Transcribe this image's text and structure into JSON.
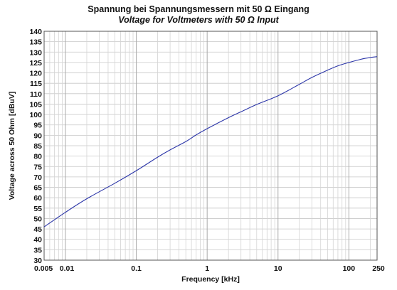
{
  "chart_data": {
    "type": "line",
    "title": "Spannung bei Spannungsmessern mit 50 Ω Eingang",
    "subtitle": "Voltage for Voltmeters with 50 Ω Input",
    "xlabel": "Frequency [kHz]",
    "ylabel": "Voltage across 50 Ohm [dBuV]",
    "x_scale": "log",
    "xlim": [
      0.005,
      250
    ],
    "ylim": [
      30,
      140
    ],
    "grid": true,
    "x_tick_labels": [
      "0.005",
      "0.01",
      "0.1",
      "1",
      "10",
      "100",
      "250"
    ],
    "x_ticks": [
      0.005,
      0.01,
      0.1,
      1,
      10,
      100,
      250
    ],
    "y_ticks": [
      30,
      35,
      40,
      45,
      50,
      55,
      60,
      65,
      70,
      75,
      80,
      85,
      90,
      95,
      100,
      105,
      110,
      115,
      120,
      125,
      130,
      135,
      140
    ],
    "series_color": "#2b35a8",
    "x": [
      0.005,
      0.01,
      0.02,
      0.05,
      0.1,
      0.2,
      0.3,
      0.5,
      0.7,
      1,
      2,
      3,
      5,
      10,
      20,
      30,
      50,
      70,
      100,
      150,
      200,
      250
    ],
    "y": [
      46,
      53,
      59.5,
      67,
      73,
      79.5,
      83,
      87,
      90.2,
      93.2,
      98.5,
      101.3,
      104.8,
      109,
      114.5,
      117.8,
      121.3,
      123.4,
      125,
      126.6,
      127.4,
      127.8
    ]
  }
}
